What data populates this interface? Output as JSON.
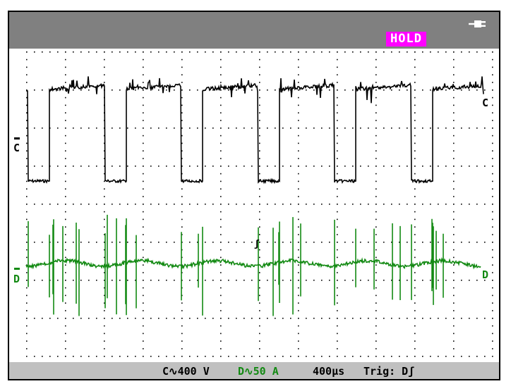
{
  "status": {
    "hold_label": "HOLD",
    "hold_color": "#ff00ff",
    "power_icon": "plug-icon"
  },
  "channels": {
    "c": {
      "marker_left": "C",
      "marker_right": "C",
      "color": "#000000",
      "scale_label": "C∿400 V"
    },
    "d": {
      "marker_left": "D",
      "marker_right": "D",
      "color": "#138a13",
      "scale_label": "D∿50 A"
    }
  },
  "timebase_label": "400µs",
  "trigger_label": "Trig: Dʃ",
  "trigger_marker": "ʃ",
  "graticule": {
    "divisions_x": 12,
    "divisions_y": 8
  }
}
